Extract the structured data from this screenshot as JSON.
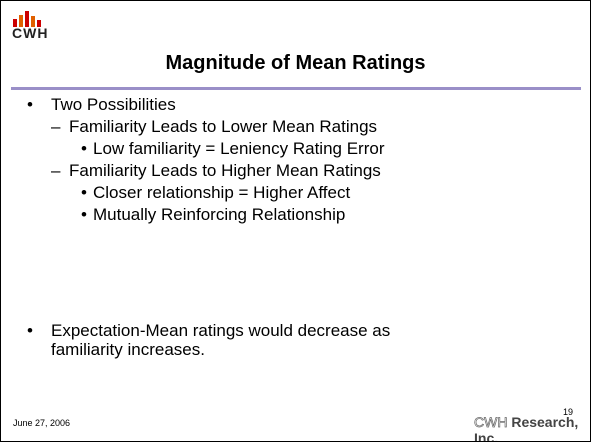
{
  "slide": {
    "logo": "CWH",
    "title": "Magnitude of Mean Ratings",
    "bullets": [
      {
        "level": 1,
        "text": "Two Possibilities"
      },
      {
        "level": 2,
        "text": "Familiarity Leads to Lower Mean Ratings"
      },
      {
        "level": 3,
        "text": "Low familiarity = Leniency Rating Error"
      },
      {
        "level": 2,
        "text": "Familiarity Leads to Higher Mean Ratings"
      },
      {
        "level": 3,
        "text": "Closer relationship = Higher Affect"
      },
      {
        "level": 3,
        "text": "Mutually Reinforcing Relationship"
      }
    ],
    "bullet2": "Expectation-Mean ratings would decrease as familiarity increases.",
    "date": "June 27, 2006",
    "page": "19",
    "footer_brand_a": "CWH",
    "footer_brand_b": "Research, Inc."
  }
}
